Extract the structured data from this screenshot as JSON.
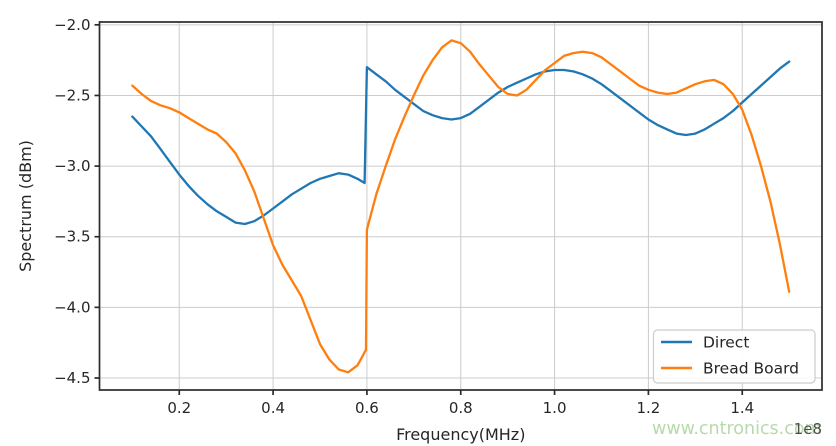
{
  "watermark": {
    "text": "www.cntronics.com",
    "color": "#b4d9a6"
  },
  "chart_data": {
    "type": "line",
    "title": "",
    "xlabel": "Frequency(MHz)",
    "ylabel": "Spectrum (dBm)",
    "x_offset_label": "1e8",
    "xlim": [
      0.03,
      1.57
    ],
    "ylim": [
      -4.585,
      -1.98
    ],
    "xticks": [
      0.2,
      0.4,
      0.6,
      0.8,
      1.0,
      1.2,
      1.4
    ],
    "xticklabels": [
      "0.2",
      "0.4",
      "0.6",
      "0.8",
      "1.0",
      "1.2",
      "1.4"
    ],
    "yticks": [
      -2.0,
      -2.5,
      -3.0,
      -3.5,
      -4.0,
      -4.5
    ],
    "yticklabels": [
      "−2.0",
      "−2.5",
      "−3.0",
      "−3.5",
      "−4.0",
      "−4.5"
    ],
    "grid": true,
    "legend_position": "lower right",
    "colors": {
      "grid": "#cccccc",
      "spine": "#2b2b2b",
      "tick_label": "#262626",
      "axis_label": "#262626",
      "legend_border": "#cccccc",
      "legend_bg": "#ffffff",
      "offset_label": "#3d3d3d"
    },
    "series": [
      {
        "name": "Direct",
        "color": "#1f77b4",
        "points": [
          [
            0.1,
            -2.65
          ],
          [
            0.12,
            -2.72
          ],
          [
            0.14,
            -2.79
          ],
          [
            0.16,
            -2.88
          ],
          [
            0.18,
            -2.97
          ],
          [
            0.2,
            -3.06
          ],
          [
            0.22,
            -3.14
          ],
          [
            0.24,
            -3.21
          ],
          [
            0.26,
            -3.27
          ],
          [
            0.28,
            -3.32
          ],
          [
            0.3,
            -3.36
          ],
          [
            0.32,
            -3.4
          ],
          [
            0.34,
            -3.41
          ],
          [
            0.36,
            -3.39
          ],
          [
            0.38,
            -3.35
          ],
          [
            0.4,
            -3.3
          ],
          [
            0.42,
            -3.25
          ],
          [
            0.44,
            -3.2
          ],
          [
            0.46,
            -3.16
          ],
          [
            0.48,
            -3.12
          ],
          [
            0.5,
            -3.09
          ],
          [
            0.52,
            -3.07
          ],
          [
            0.54,
            -3.05
          ],
          [
            0.56,
            -3.06
          ],
          [
            0.58,
            -3.09
          ],
          [
            0.595,
            -3.12
          ],
          [
            0.6,
            -2.3
          ],
          [
            0.62,
            -2.35
          ],
          [
            0.64,
            -2.4
          ],
          [
            0.66,
            -2.46
          ],
          [
            0.68,
            -2.51
          ],
          [
            0.7,
            -2.56
          ],
          [
            0.72,
            -2.61
          ],
          [
            0.74,
            -2.64
          ],
          [
            0.76,
            -2.66
          ],
          [
            0.78,
            -2.67
          ],
          [
            0.8,
            -2.66
          ],
          [
            0.82,
            -2.63
          ],
          [
            0.84,
            -2.58
          ],
          [
            0.86,
            -2.53
          ],
          [
            0.88,
            -2.48
          ],
          [
            0.9,
            -2.44
          ],
          [
            0.92,
            -2.41
          ],
          [
            0.94,
            -2.38
          ],
          [
            0.96,
            -2.35
          ],
          [
            0.98,
            -2.33
          ],
          [
            1.0,
            -2.32
          ],
          [
            1.02,
            -2.32
          ],
          [
            1.04,
            -2.33
          ],
          [
            1.06,
            -2.35
          ],
          [
            1.08,
            -2.38
          ],
          [
            1.1,
            -2.42
          ],
          [
            1.12,
            -2.47
          ],
          [
            1.14,
            -2.52
          ],
          [
            1.16,
            -2.57
          ],
          [
            1.18,
            -2.62
          ],
          [
            1.2,
            -2.67
          ],
          [
            1.22,
            -2.71
          ],
          [
            1.24,
            -2.74
          ],
          [
            1.26,
            -2.77
          ],
          [
            1.28,
            -2.78
          ],
          [
            1.3,
            -2.77
          ],
          [
            1.32,
            -2.74
          ],
          [
            1.34,
            -2.7
          ],
          [
            1.36,
            -2.66
          ],
          [
            1.38,
            -2.61
          ],
          [
            1.4,
            -2.55
          ],
          [
            1.42,
            -2.49
          ],
          [
            1.44,
            -2.43
          ],
          [
            1.46,
            -2.37
          ],
          [
            1.48,
            -2.31
          ],
          [
            1.5,
            -2.26
          ]
        ]
      },
      {
        "name": "Bread Board",
        "color": "#ff7f0e",
        "points": [
          [
            0.1,
            -2.43
          ],
          [
            0.12,
            -2.49
          ],
          [
            0.14,
            -2.54
          ],
          [
            0.16,
            -2.57
          ],
          [
            0.18,
            -2.59
          ],
          [
            0.2,
            -2.62
          ],
          [
            0.22,
            -2.66
          ],
          [
            0.24,
            -2.7
          ],
          [
            0.26,
            -2.74
          ],
          [
            0.28,
            -2.77
          ],
          [
            0.3,
            -2.83
          ],
          [
            0.32,
            -2.91
          ],
          [
            0.34,
            -3.03
          ],
          [
            0.36,
            -3.18
          ],
          [
            0.38,
            -3.37
          ],
          [
            0.4,
            -3.56
          ],
          [
            0.42,
            -3.7
          ],
          [
            0.44,
            -3.81
          ],
          [
            0.46,
            -3.92
          ],
          [
            0.48,
            -4.09
          ],
          [
            0.5,
            -4.26
          ],
          [
            0.52,
            -4.37
          ],
          [
            0.54,
            -4.44
          ],
          [
            0.56,
            -4.46
          ],
          [
            0.58,
            -4.41
          ],
          [
            0.59,
            -4.35
          ],
          [
            0.598,
            -4.3
          ],
          [
            0.6,
            -3.45
          ],
          [
            0.62,
            -3.2
          ],
          [
            0.64,
            -3.0
          ],
          [
            0.66,
            -2.81
          ],
          [
            0.68,
            -2.65
          ],
          [
            0.7,
            -2.5
          ],
          [
            0.72,
            -2.36
          ],
          [
            0.74,
            -2.25
          ],
          [
            0.76,
            -2.16
          ],
          [
            0.78,
            -2.11
          ],
          [
            0.8,
            -2.13
          ],
          [
            0.82,
            -2.19
          ],
          [
            0.84,
            -2.28
          ],
          [
            0.86,
            -2.36
          ],
          [
            0.88,
            -2.44
          ],
          [
            0.9,
            -2.49
          ],
          [
            0.92,
            -2.5
          ],
          [
            0.94,
            -2.46
          ],
          [
            0.96,
            -2.39
          ],
          [
            0.98,
            -2.32
          ],
          [
            1.0,
            -2.27
          ],
          [
            1.02,
            -2.22
          ],
          [
            1.04,
            -2.2
          ],
          [
            1.06,
            -2.19
          ],
          [
            1.08,
            -2.2
          ],
          [
            1.1,
            -2.23
          ],
          [
            1.12,
            -2.28
          ],
          [
            1.14,
            -2.33
          ],
          [
            1.16,
            -2.38
          ],
          [
            1.18,
            -2.43
          ],
          [
            1.2,
            -2.46
          ],
          [
            1.22,
            -2.48
          ],
          [
            1.24,
            -2.49
          ],
          [
            1.26,
            -2.48
          ],
          [
            1.28,
            -2.45
          ],
          [
            1.3,
            -2.42
          ],
          [
            1.32,
            -2.4
          ],
          [
            1.34,
            -2.39
          ],
          [
            1.36,
            -2.42
          ],
          [
            1.38,
            -2.49
          ],
          [
            1.4,
            -2.6
          ],
          [
            1.42,
            -2.78
          ],
          [
            1.44,
            -3.0
          ],
          [
            1.46,
            -3.25
          ],
          [
            1.48,
            -3.55
          ],
          [
            1.5,
            -3.89
          ]
        ]
      }
    ]
  }
}
